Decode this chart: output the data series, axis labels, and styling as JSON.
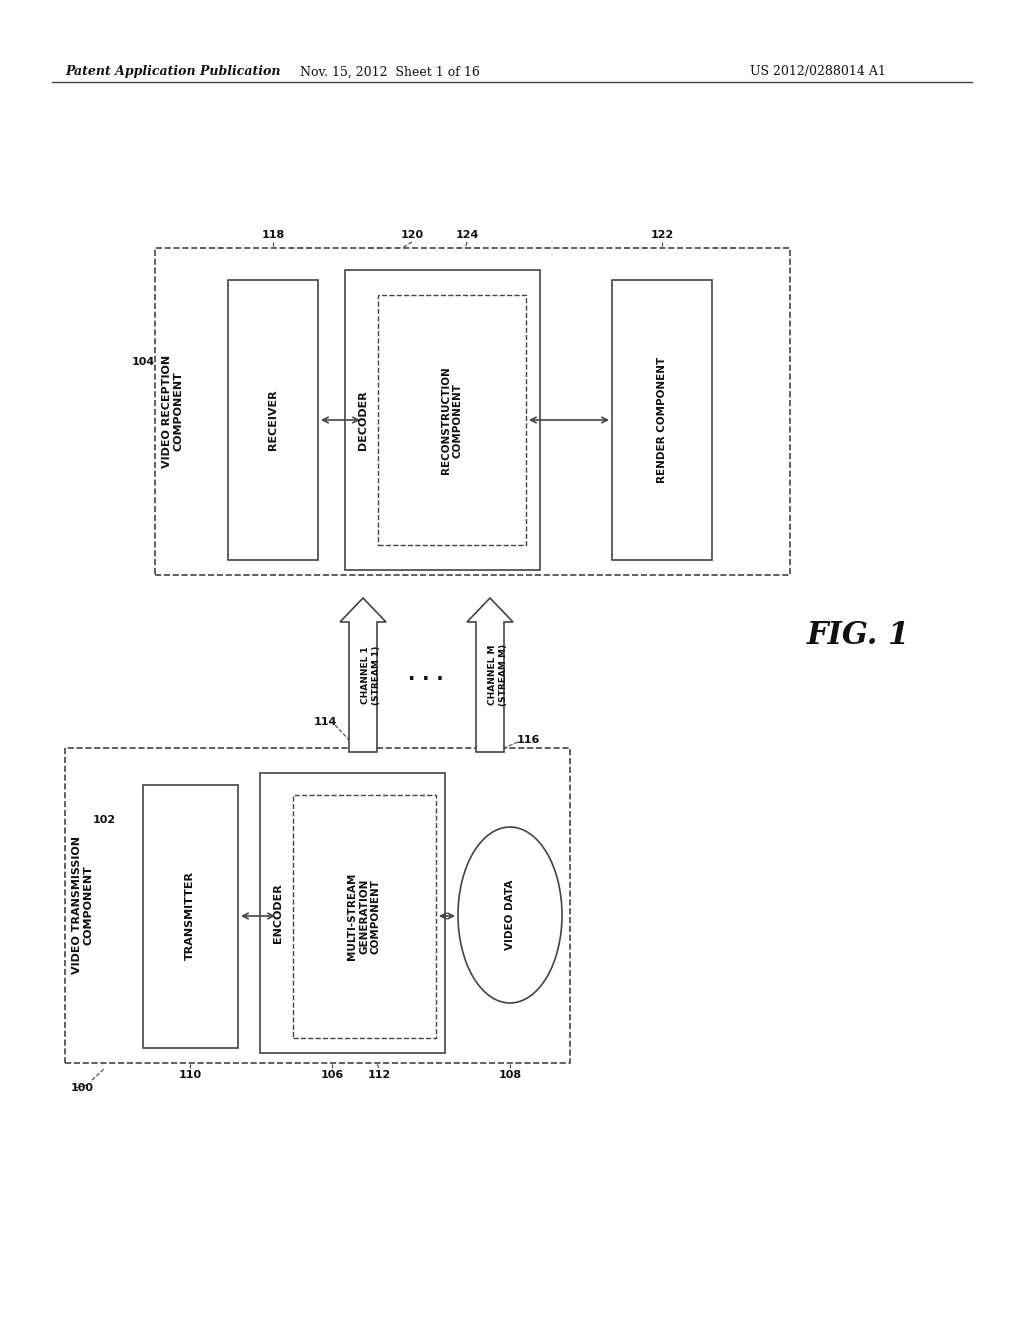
{
  "header_left": "Patent Application Publication",
  "header_mid": "Nov. 15, 2012  Sheet 1 of 16",
  "header_right": "US 2012/0288014 A1",
  "bg_color": "#ffffff",
  "line_color": "#444444",
  "text_color": "#111111"
}
